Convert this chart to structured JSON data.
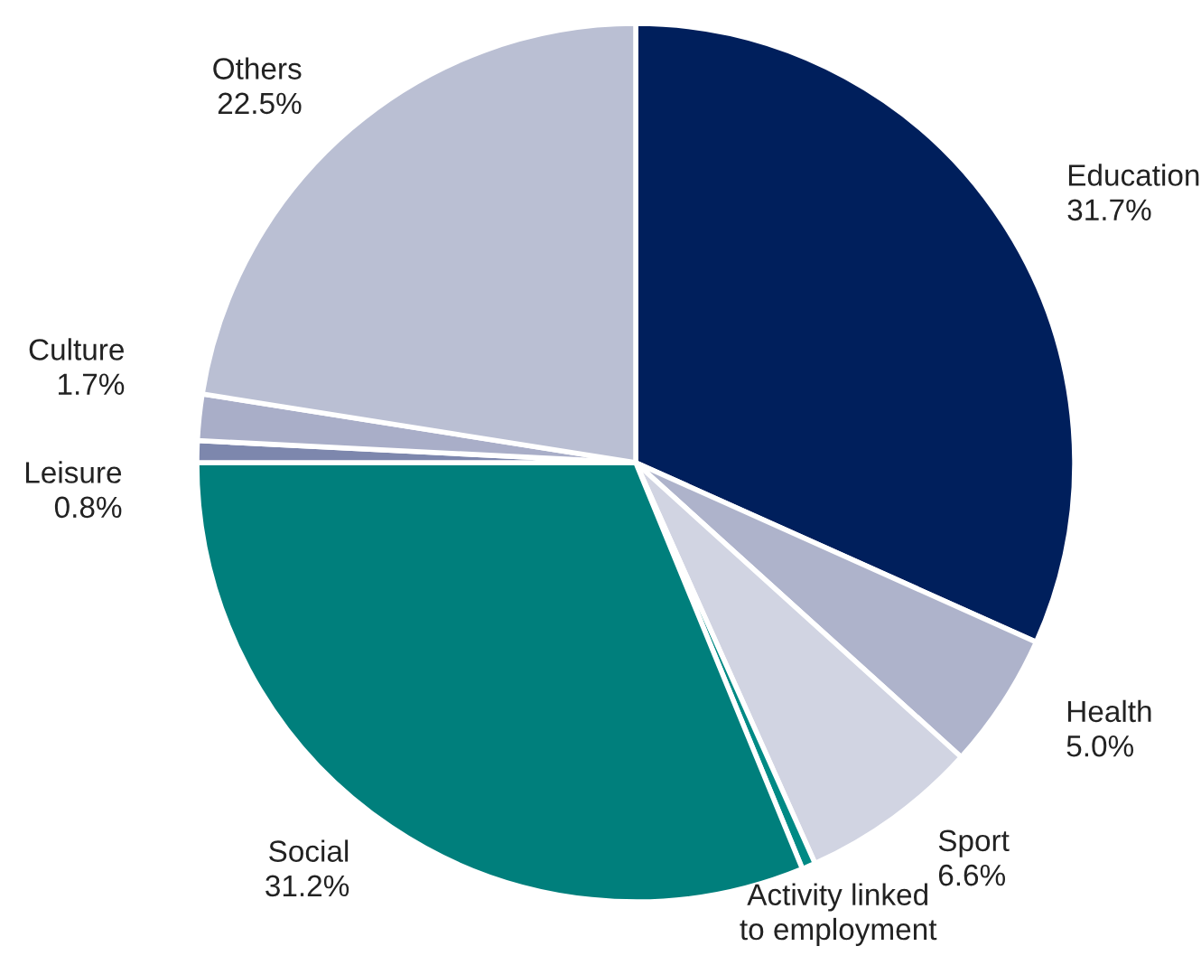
{
  "chart_data": {
    "type": "pie",
    "categories": [
      "Education",
      "Health",
      "Sport",
      "Activity linked\nto employment",
      "Social",
      "Leisure",
      "Culture",
      "Others"
    ],
    "values": [
      31.7,
      5.0,
      6.6,
      0.5,
      31.2,
      0.8,
      1.7,
      22.5
    ],
    "value_labels": [
      "31.7%",
      "5.0%",
      "6.6%",
      null,
      "31.2%",
      "0.8%",
      "1.7%",
      "22.5%"
    ],
    "colors": [
      "#001f5c",
      "#aeb3cb",
      "#d1d4e2",
      "#008a85",
      "#007f7c",
      "#7d87ad",
      "#a9aec8",
      "#babfd3"
    ]
  }
}
